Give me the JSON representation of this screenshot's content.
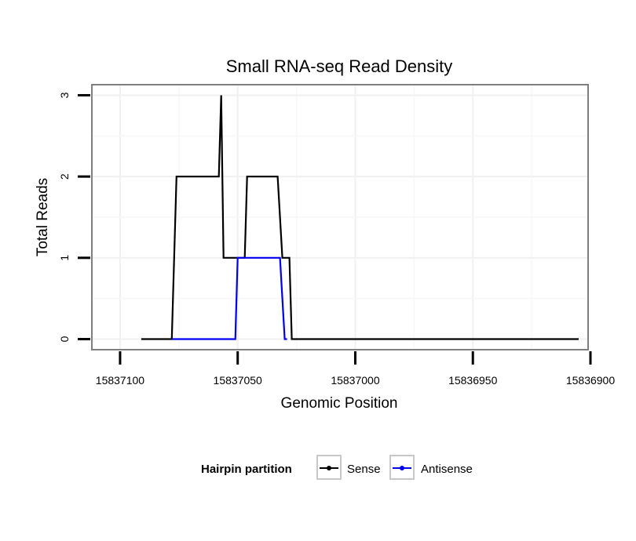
{
  "chart_data": {
    "type": "line",
    "title": "Small RNA-seq Read Density",
    "xlabel": "Genomic Position",
    "ylabel": "Total Reads",
    "xlim": [
      15837112,
      15836901
    ],
    "x_reversed": true,
    "ylim": [
      -0.13,
      3.13
    ],
    "xticks": [
      15837100,
      15837050,
      15837000,
      15836950,
      15836900
    ],
    "xtick_labels": [
      "15837100",
      "15837050",
      "15837000",
      "15836950",
      "15836900"
    ],
    "yticks": [
      0,
      1,
      2,
      3
    ],
    "ytick_labels": [
      "0",
      "1",
      "2",
      "3"
    ],
    "grid": true,
    "legend": {
      "title": "Hairpin partition",
      "position": "bottom"
    },
    "series": [
      {
        "name": "Sense",
        "color": "#000000",
        "x": [
          15837091,
          15837078,
          15837076,
          15837058,
          15837057,
          15837056,
          15837052,
          15837051,
          15837047,
          15837046,
          15837033,
          15837031,
          15837030,
          15837028,
          15837027,
          15837026,
          15836905
        ],
        "y": [
          0,
          0,
          2,
          2,
          3,
          1,
          1,
          1,
          1,
          2,
          2,
          1,
          1,
          1,
          0,
          0,
          0
        ]
      },
      {
        "name": "Antisense",
        "color": "#0000ee",
        "x": [
          15837078,
          15837051,
          15837050,
          15837032,
          15837030,
          15837029
        ],
        "y": [
          0,
          0,
          1,
          1,
          0,
          0
        ]
      }
    ]
  }
}
